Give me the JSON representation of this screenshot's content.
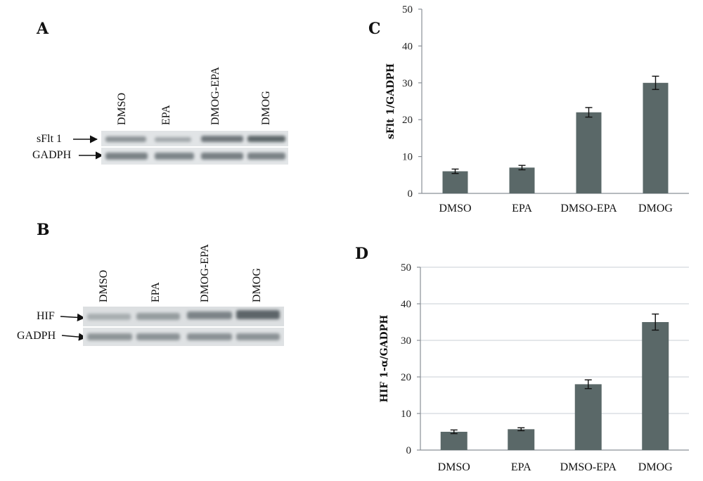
{
  "panels": {
    "A": {
      "letter": "A",
      "lanes": [
        "DMSO",
        "EPA",
        "DMOG-EPA",
        "DMOG"
      ],
      "rows": [
        "sFlt 1",
        "GADPH"
      ]
    },
    "B": {
      "letter": "B",
      "lanes": [
        "DMSO",
        "EPA",
        "DMOG-EPA",
        "DMOG"
      ],
      "rows": [
        "HIF",
        "GADPH"
      ]
    }
  },
  "chart_data": [
    {
      "panel": "C",
      "type": "bar",
      "title": "",
      "xlabel": "",
      "ylabel": "sFlt 1/GADPH",
      "categories": [
        "DMSO",
        "EPA",
        "DMSO-EPA",
        "DMOG"
      ],
      "values": [
        6,
        7,
        22,
        30
      ],
      "errors": [
        0.6,
        0.6,
        1.3,
        1.8
      ],
      "ylim": [
        0,
        50
      ],
      "yticks": [
        0,
        10,
        20,
        30,
        40,
        50
      ],
      "grid": false,
      "color": "#5a6868"
    },
    {
      "panel": "D",
      "type": "bar",
      "title": "",
      "xlabel": "",
      "ylabel": "HIF 1-α/GADPH",
      "categories": [
        "DMSO",
        "EPA",
        "DMSO-EPA",
        "DMOG"
      ],
      "values": [
        5,
        5.7,
        18,
        35
      ],
      "errors": [
        0.5,
        0.4,
        1.2,
        2.2
      ],
      "ylim": [
        0,
        50
      ],
      "yticks": [
        0,
        10,
        20,
        30,
        40,
        50
      ],
      "grid": true,
      "color": "#5a6868"
    }
  ]
}
